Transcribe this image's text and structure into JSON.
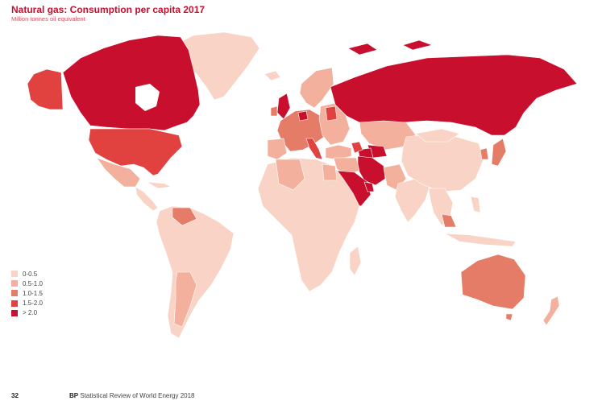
{
  "title": "Natural gas: Consumption per capita 2017",
  "subtitle": "Million tonnes oil equivalent",
  "legend": [
    {
      "label": "0-0.5",
      "color": "#f9d3c6"
    },
    {
      "label": "0.5-1.0",
      "color": "#f3b09c"
    },
    {
      "label": "1.0-1.5",
      "color": "#e57c68"
    },
    {
      "label": "1.5-2.0",
      "color": "#e1423f"
    },
    {
      "label": "> 2.0",
      "color": "#c8102e"
    }
  ],
  "footer": {
    "page_number": "32",
    "brand": "BP",
    "publication": "Statistical Review of World Energy 2018"
  }
}
